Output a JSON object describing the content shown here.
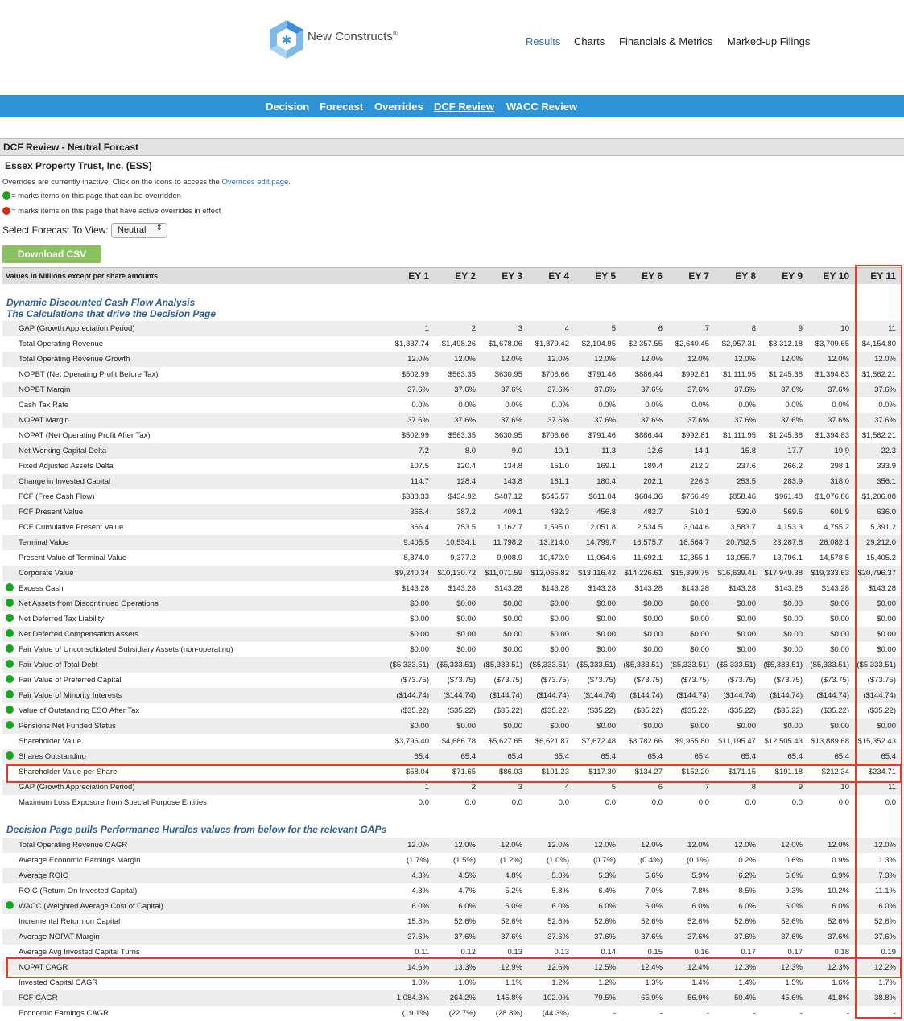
{
  "brand": {
    "name": "New Constructs",
    "mark": "®"
  },
  "topnav": [
    "Results",
    "Charts",
    "Financials & Metrics",
    "Marked-up Filings"
  ],
  "subnav": [
    "Decision",
    "Forecast",
    "Overrides",
    "DCF Review",
    "WACC Review"
  ],
  "page_title": "DCF Review - Neutral Forcast",
  "company": "Essex Property Trust, Inc. (ESS)",
  "notes": {
    "inactive_prefix": "Overrides are currently inactive. Click on the icons to access the ",
    "inactive_link": "Overrides edit page",
    "inactive_suffix": ".",
    "green": "= marks items on this page that can be overridden",
    "red": "= marks items on this page that have active overrides in effect"
  },
  "forecast_select": {
    "label": "Select Forecast To View:",
    "value": "Neutral"
  },
  "download_label": "Download CSV",
  "table_header_label": "Values in Millions except per share amounts",
  "columns": [
    "EY 1",
    "EY 2",
    "EY 3",
    "EY 4",
    "EY 5",
    "EY 6",
    "EY 7",
    "EY 8",
    "EY 9",
    "EY 10",
    "EY 11"
  ],
  "section1_title": [
    "Dynamic Discounted Cash Flow Analysis",
    "The Calculations that drive the Decision Page"
  ],
  "section1_rows": [
    {
      "label": "GAP (Growth Appreciation Period)",
      "dot": false,
      "values": [
        "1",
        "2",
        "3",
        "4",
        "5",
        "6",
        "7",
        "8",
        "9",
        "10",
        "11"
      ]
    },
    {
      "label": "Total Operating Revenue",
      "dot": false,
      "values": [
        "$1,337.74",
        "$1,498.26",
        "$1,678.06",
        "$1,879.42",
        "$2,104.95",
        "$2,357.55",
        "$2,640.45",
        "$2,957.31",
        "$3,312.18",
        "$3,709.65",
        "$4,154.80"
      ]
    },
    {
      "label": "Total Operating Revenue Growth",
      "dot": false,
      "values": [
        "12.0%",
        "12.0%",
        "12.0%",
        "12.0%",
        "12.0%",
        "12.0%",
        "12.0%",
        "12.0%",
        "12.0%",
        "12.0%",
        "12.0%"
      ]
    },
    {
      "label": "NOPBT (Net Operating Profit Before Tax)",
      "dot": false,
      "values": [
        "$502.99",
        "$563.35",
        "$630.95",
        "$706.66",
        "$791.46",
        "$886.44",
        "$992.81",
        "$1,111.95",
        "$1,245.38",
        "$1,394.83",
        "$1,562.21"
      ]
    },
    {
      "label": "NOPBT Margin",
      "dot": false,
      "values": [
        "37.6%",
        "37.6%",
        "37.6%",
        "37.6%",
        "37.6%",
        "37.6%",
        "37.6%",
        "37.6%",
        "37.6%",
        "37.6%",
        "37.6%"
      ]
    },
    {
      "label": "Cash Tax Rate",
      "dot": false,
      "values": [
        "0.0%",
        "0.0%",
        "0.0%",
        "0.0%",
        "0.0%",
        "0.0%",
        "0.0%",
        "0.0%",
        "0.0%",
        "0.0%",
        "0.0%"
      ]
    },
    {
      "label": "NOPAT Margin",
      "dot": false,
      "values": [
        "37.6%",
        "37.6%",
        "37.6%",
        "37.6%",
        "37.6%",
        "37.6%",
        "37.6%",
        "37.6%",
        "37.6%",
        "37.6%",
        "37.6%"
      ]
    },
    {
      "label": "NOPAT (Net Operating Profit After Tax)",
      "dot": false,
      "values": [
        "$502.99",
        "$563.35",
        "$630.95",
        "$706.66",
        "$791.46",
        "$886.44",
        "$992.81",
        "$1,111.95",
        "$1,245.38",
        "$1,394.83",
        "$1,562.21"
      ]
    },
    {
      "label": "Net Working Capital Delta",
      "dot": false,
      "values": [
        "7.2",
        "8.0",
        "9.0",
        "10.1",
        "11.3",
        "12.6",
        "14.1",
        "15.8",
        "17.7",
        "19.9",
        "22.3"
      ]
    },
    {
      "label": "Fixed Adjusted Assets Delta",
      "dot": false,
      "values": [
        "107.5",
        "120.4",
        "134.8",
        "151.0",
        "169.1",
        "189.4",
        "212.2",
        "237.6",
        "266.2",
        "298.1",
        "333.9"
      ]
    },
    {
      "label": "Change in Invested Capital",
      "dot": false,
      "values": [
        "114.7",
        "128.4",
        "143.8",
        "161.1",
        "180.4",
        "202.1",
        "226.3",
        "253.5",
        "283.9",
        "318.0",
        "356.1"
      ]
    },
    {
      "label": "FCF (Free Cash Flow)",
      "dot": false,
      "values": [
        "$388.33",
        "$434.92",
        "$487.12",
        "$545.57",
        "$611.04",
        "$684.36",
        "$766.49",
        "$858.46",
        "$961.48",
        "$1,076.86",
        "$1,206.08"
      ]
    },
    {
      "label": "FCF Present Value",
      "dot": false,
      "values": [
        "366.4",
        "387.2",
        "409.1",
        "432.3",
        "456.8",
        "482.7",
        "510.1",
        "539.0",
        "569.6",
        "601.9",
        "636.0"
      ]
    },
    {
      "label": "FCF Cumulative Present Value",
      "dot": false,
      "values": [
        "366.4",
        "753.5",
        "1,162.7",
        "1,595.0",
        "2,051.8",
        "2,534.5",
        "3,044.6",
        "3,583.7",
        "4,153.3",
        "4,755.2",
        "5,391.2"
      ]
    },
    {
      "label": "Terminal Value",
      "dot": false,
      "values": [
        "9,405.5",
        "10,534.1",
        "11,798.2",
        "13,214.0",
        "14,799.7",
        "16,575.7",
        "18,564.7",
        "20,792.5",
        "23,287.6",
        "26,082.1",
        "29,212.0"
      ]
    },
    {
      "label": "Present Value of Terminal Value",
      "dot": false,
      "values": [
        "8,874.0",
        "9,377.2",
        "9,908.9",
        "10,470.9",
        "11,064.6",
        "11,692.1",
        "12,355.1",
        "13,055.7",
        "13,796.1",
        "14,578.5",
        "15,405.2"
      ]
    },
    {
      "label": "Corporate Value",
      "dot": false,
      "values": [
        "$9,240.34",
        "$10,130.72",
        "$11,071.59",
        "$12,065.82",
        "$13,116.42",
        "$14,226.61",
        "$15,399.75",
        "$16,639.41",
        "$17,949.38",
        "$19,333.63",
        "$20,796.37"
      ]
    },
    {
      "label": "Excess Cash",
      "dot": true,
      "values": [
        "$143.28",
        "$143.28",
        "$143.28",
        "$143.28",
        "$143.28",
        "$143.28",
        "$143.28",
        "$143.28",
        "$143.28",
        "$143.28",
        "$143.28"
      ]
    },
    {
      "label": "Net Assets from Discontinued Operations",
      "dot": true,
      "values": [
        "$0.00",
        "$0.00",
        "$0.00",
        "$0.00",
        "$0.00",
        "$0.00",
        "$0.00",
        "$0.00",
        "$0.00",
        "$0.00",
        "$0.00"
      ]
    },
    {
      "label": "Net Deferred Tax Liability",
      "dot": true,
      "values": [
        "$0.00",
        "$0.00",
        "$0.00",
        "$0.00",
        "$0.00",
        "$0.00",
        "$0.00",
        "$0.00",
        "$0.00",
        "$0.00",
        "$0.00"
      ]
    },
    {
      "label": "Net Deferred Compensation Assets",
      "dot": true,
      "values": [
        "$0.00",
        "$0.00",
        "$0.00",
        "$0.00",
        "$0.00",
        "$0.00",
        "$0.00",
        "$0.00",
        "$0.00",
        "$0.00",
        "$0.00"
      ]
    },
    {
      "label": "Fair Value of Unconsolidated Subsidiary Assets (non-operating)",
      "dot": true,
      "values": [
        "$0.00",
        "$0.00",
        "$0.00",
        "$0.00",
        "$0.00",
        "$0.00",
        "$0.00",
        "$0.00",
        "$0.00",
        "$0.00",
        "$0.00"
      ]
    },
    {
      "label": "Fair Value of Total Debt",
      "dot": true,
      "values": [
        "($5,333.51)",
        "($5,333.51)",
        "($5,333.51)",
        "($5,333.51)",
        "($5,333.51)",
        "($5,333.51)",
        "($5,333.51)",
        "($5,333.51)",
        "($5,333.51)",
        "($5,333.51)",
        "($5,333.51)"
      ]
    },
    {
      "label": "Fair Value of Preferred Capital",
      "dot": true,
      "values": [
        "($73.75)",
        "($73.75)",
        "($73.75)",
        "($73.75)",
        "($73.75)",
        "($73.75)",
        "($73.75)",
        "($73.75)",
        "($73.75)",
        "($73.75)",
        "($73.75)"
      ]
    },
    {
      "label": "Fair Value of Minority Interests",
      "dot": true,
      "values": [
        "($144.74)",
        "($144.74)",
        "($144.74)",
        "($144.74)",
        "($144.74)",
        "($144.74)",
        "($144.74)",
        "($144.74)",
        "($144.74)",
        "($144.74)",
        "($144.74)"
      ]
    },
    {
      "label": "Value of Outstanding ESO After Tax",
      "dot": true,
      "values": [
        "($35.22)",
        "($35.22)",
        "($35.22)",
        "($35.22)",
        "($35.22)",
        "($35.22)",
        "($35.22)",
        "($35.22)",
        "($35.22)",
        "($35.22)",
        "($35.22)"
      ]
    },
    {
      "label": "Pensions Net Funded Status",
      "dot": true,
      "values": [
        "$0.00",
        "$0.00",
        "$0.00",
        "$0.00",
        "$0.00",
        "$0.00",
        "$0.00",
        "$0.00",
        "$0.00",
        "$0.00",
        "$0.00"
      ]
    },
    {
      "label": "Shareholder Value",
      "dot": false,
      "values": [
        "$3,796.40",
        "$4,686.78",
        "$5,627.65",
        "$6,621.87",
        "$7,672.48",
        "$8,782.66",
        "$9,955.80",
        "$11,195.47",
        "$12,505.43",
        "$13,889.68",
        "$15,352.43"
      ]
    },
    {
      "label": "Shares Outstanding",
      "dot": true,
      "values": [
        "65.4",
        "65.4",
        "65.4",
        "65.4",
        "65.4",
        "65.4",
        "65.4",
        "65.4",
        "65.4",
        "65.4",
        "65.4"
      ]
    },
    {
      "label": "Shareholder Value per Share",
      "dot": false,
      "values": [
        "$58.04",
        "$71.65",
        "$86.03",
        "$101.23",
        "$117.30",
        "$134.27",
        "$152.20",
        "$171.15",
        "$191.18",
        "$212.34",
        "$234.71"
      ]
    },
    {
      "label": "GAP (Growth Appreciation Period)",
      "dot": false,
      "values": [
        "1",
        "2",
        "3",
        "4",
        "5",
        "6",
        "7",
        "8",
        "9",
        "10",
        "11"
      ]
    },
    {
      "label": "Maximum Loss Exposure from Special Purpose Entities",
      "dot": false,
      "values": [
        "0.0",
        "0.0",
        "0.0",
        "0.0",
        "0.0",
        "0.0",
        "0.0",
        "0.0",
        "0.0",
        "0.0",
        "0.0"
      ]
    }
  ],
  "section2_title": "Decision Page pulls Performance Hurdles values from below for the relevant GAPs",
  "section2_rows": [
    {
      "label": "Total Operating Revenue CAGR",
      "dot": false,
      "values": [
        "12.0%",
        "12.0%",
        "12.0%",
        "12.0%",
        "12.0%",
        "12.0%",
        "12.0%",
        "12.0%",
        "12.0%",
        "12.0%",
        "12.0%"
      ]
    },
    {
      "label": "Average Economic Earnings Margin",
      "dot": false,
      "values": [
        "(1.7%)",
        "(1.5%)",
        "(1.2%)",
        "(1.0%)",
        "(0.7%)",
        "(0.4%)",
        "(0.1%)",
        "0.2%",
        "0.6%",
        "0.9%",
        "1.3%"
      ]
    },
    {
      "label": "Average ROIC",
      "dot": false,
      "values": [
        "4.3%",
        "4.5%",
        "4.8%",
        "5.0%",
        "5.3%",
        "5.6%",
        "5.9%",
        "6.2%",
        "6.6%",
        "6.9%",
        "7.3%"
      ]
    },
    {
      "label": "ROIC (Return On Invested Capital)",
      "dot": false,
      "values": [
        "4.3%",
        "4.7%",
        "5.2%",
        "5.8%",
        "6.4%",
        "7.0%",
        "7.8%",
        "8.5%",
        "9.3%",
        "10.2%",
        "11.1%"
      ]
    },
    {
      "label": "WACC (Weighted Average Cost of Capital)",
      "dot": true,
      "values": [
        "6.0%",
        "6.0%",
        "6.0%",
        "6.0%",
        "6.0%",
        "6.0%",
        "6.0%",
        "6.0%",
        "6.0%",
        "6.0%",
        "6.0%"
      ]
    },
    {
      "label": "Incremental Return on Capital",
      "dot": false,
      "values": [
        "15.8%",
        "52.6%",
        "52.6%",
        "52.6%",
        "52.6%",
        "52.6%",
        "52.6%",
        "52.6%",
        "52.6%",
        "52.6%",
        "52.6%"
      ]
    },
    {
      "label": "Average NOPAT Margin",
      "dot": false,
      "values": [
        "37.6%",
        "37.6%",
        "37.6%",
        "37.6%",
        "37.6%",
        "37.6%",
        "37.6%",
        "37.6%",
        "37.6%",
        "37.6%",
        "37.6%"
      ]
    },
    {
      "label": "Average Avg Invested Capital Turns",
      "dot": false,
      "values": [
        "0.11",
        "0.12",
        "0.13",
        "0.13",
        "0.14",
        "0.15",
        "0.16",
        "0.17",
        "0.17",
        "0.18",
        "0.19"
      ]
    },
    {
      "label": "NOPAT CAGR",
      "dot": false,
      "values": [
        "14.6%",
        "13.3%",
        "12.9%",
        "12.6%",
        "12.5%",
        "12.4%",
        "12.4%",
        "12.3%",
        "12.3%",
        "12.3%",
        "12.2%"
      ]
    },
    {
      "label": "Invested Capital CAGR",
      "dot": false,
      "values": [
        "1.0%",
        "1.0%",
        "1.1%",
        "1.2%",
        "1.2%",
        "1.3%",
        "1.4%",
        "1.4%",
        "1.5%",
        "1.6%",
        "1.7%"
      ]
    },
    {
      "label": "FCF CAGR",
      "dot": false,
      "values": [
        "1,084.3%",
        "264.2%",
        "145.8%",
        "102.0%",
        "79.5%",
        "65.9%",
        "56.9%",
        "50.4%",
        "45.6%",
        "41.8%",
        "38.8%"
      ]
    },
    {
      "label": "Economic Earnings CAGR",
      "dot": false,
      "values": [
        "(19.1%)",
        "(22.7%)",
        "(28.8%)",
        "(44.3%)",
        "-",
        "-",
        "-",
        "-",
        "-",
        "-",
        "-"
      ]
    }
  ]
}
